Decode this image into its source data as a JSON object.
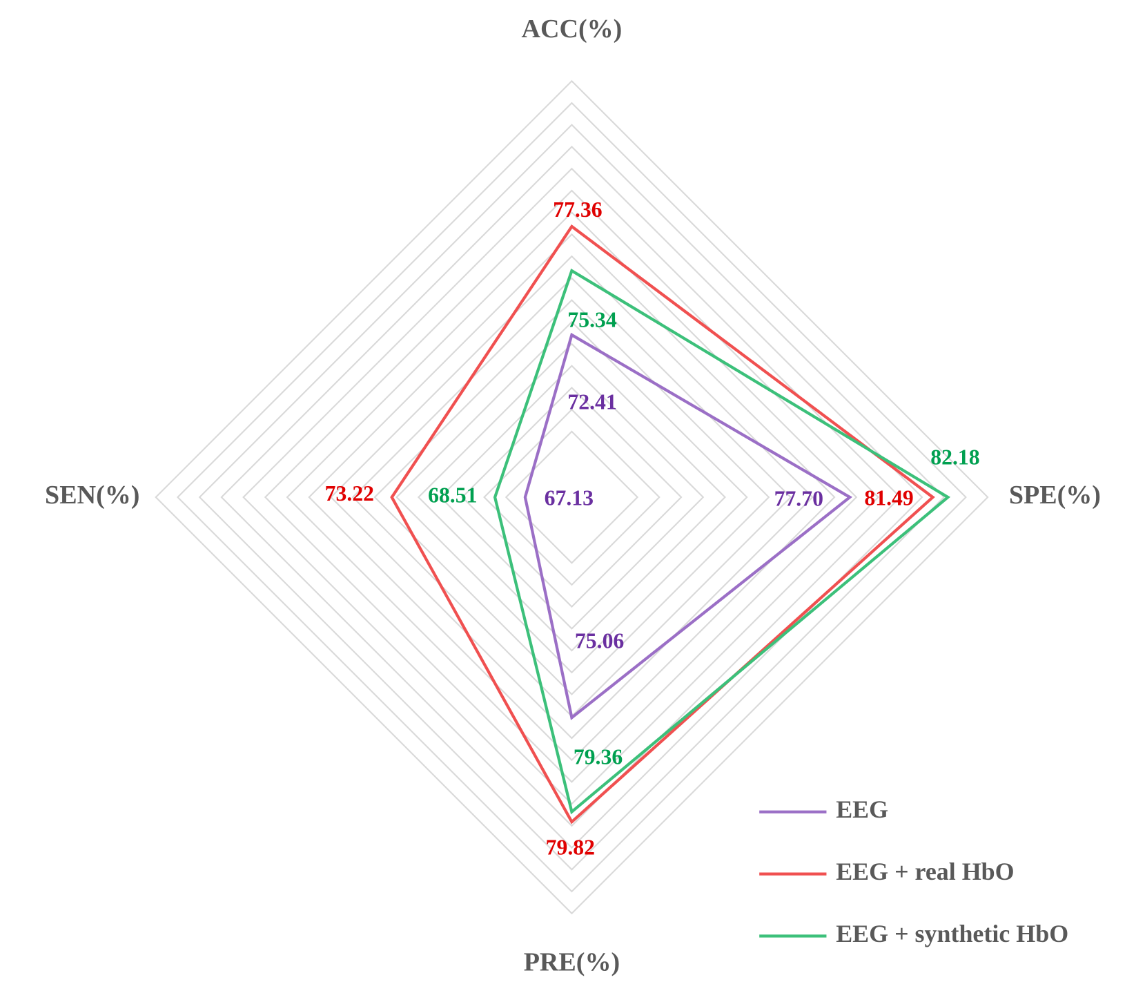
{
  "chart_data": {
    "type": "radar",
    "axes": [
      "ACC(%)",
      "SPE(%)",
      "PRE(%)",
      "SEN(%)"
    ],
    "rlim": [
      65,
      84
    ],
    "rticks": [
      68,
      69,
      70,
      71,
      72,
      73,
      74,
      75,
      76,
      77,
      78,
      79,
      80,
      81,
      82,
      83,
      84
    ],
    "grid": true,
    "legend": "lower right",
    "series": [
      {
        "name": "EEG",
        "color": "#9b6fc6",
        "label_color": "#6a2fa0",
        "values": [
          72.41,
          77.7,
          75.06,
          67.13
        ],
        "value_labels": [
          "72.41",
          "77.70",
          "75.06",
          "67.13"
        ]
      },
      {
        "name": "EEG + real HbO",
        "color": "#f05050",
        "label_color": "#e00000",
        "values": [
          77.36,
          81.49,
          79.82,
          73.22
        ],
        "value_labels": [
          "77.36",
          "81.49",
          "79.82",
          "73.22"
        ]
      },
      {
        "name": "EEG + synthetic HbO",
        "color": "#3cc07a",
        "label_color": "#00a050",
        "values": [
          75.34,
          82.18,
          79.36,
          68.51
        ],
        "value_labels": [
          "75.34",
          "82.18",
          "79.36",
          "68.51"
        ]
      }
    ]
  }
}
